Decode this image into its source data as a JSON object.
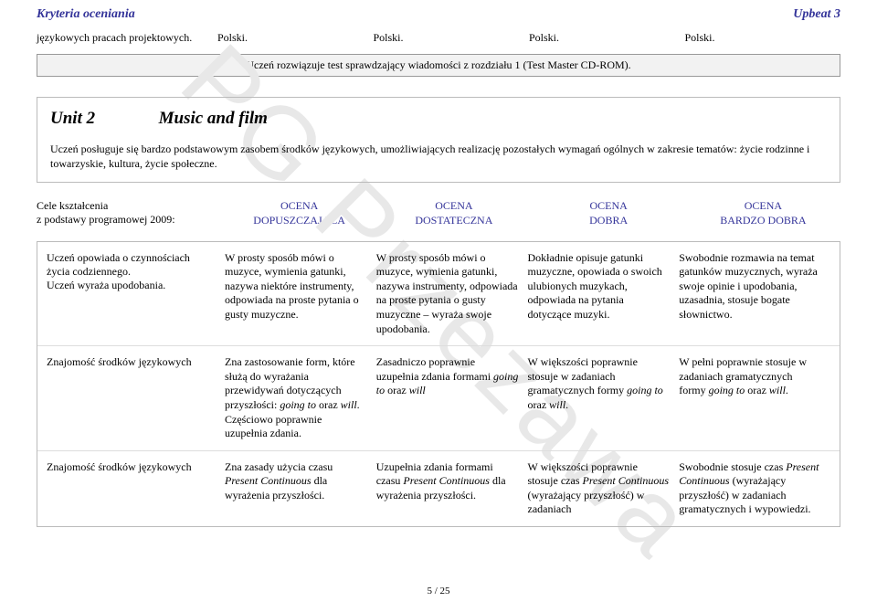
{
  "header": {
    "left": "Kryteria oceniania",
    "right": "Upbeat 3"
  },
  "top_row": {
    "left": "językowych pracach projektowych.",
    "polski": "Polski."
  },
  "test_bar": "Uczeń rozwiązuje test sprawdzający wiadomości z rozdziału 1 (Test Master CD-ROM).",
  "unit": {
    "label": "Unit 2",
    "title": "Music and film",
    "desc": "Uczeń posługuje się bardzo podstawowym zasobem środków językowych, umożliwiających realizację pozostałych wymagań ogólnych w zakresie tematów: życie rodzinne i towarzyskie, kultura, życie społeczne."
  },
  "ocena_header": {
    "left1": "Cele kształcenia",
    "left2": "z podstawy programowej 2009:",
    "c1a": "OCENA",
    "c1b": "DOPUSZCZAJĄCA",
    "c2a": "OCENA",
    "c2b": "DOSTATECZNA",
    "c3a": "OCENA",
    "c3b": "DOBRA",
    "c4a": "OCENA",
    "c4b": "BARDZO DOBRA"
  },
  "rows": [
    {
      "c0": "Uczeń opowiada o czynnościach życia codziennego.\nUczeń wyraża upodobania.",
      "c1": "W prosty sposób mówi o muzyce, wymienia gatunki, nazywa niektóre instrumenty, odpowiada na proste pytania o gusty muzyczne.",
      "c2": "W prosty sposób mówi o muzyce, wymienia gatunki, nazywa instrumenty, odpowiada na proste pytania o gusty muzyczne – wyraża swoje upodobania.",
      "c3": "Dokładnie opisuje gatunki muzyczne, opowiada o swoich ulubionych muzykach, odpowiada na pytania dotyczące muzyki.",
      "c4": "Swobodnie rozmawia na temat gatunków muzycznych, wyraża swoje opinie i upodobania, uzasadnia, stosuje bogate słownictwo."
    },
    {
      "c0": "Znajomość środków językowych",
      "c1_pre": "Zna zastosowanie form, które służą do wyrażania przewidywań dotyczących przyszłości: ",
      "c1_ital": "going to",
      "c1_mid": " oraz ",
      "c1_ital2": "will",
      "c1_post": ". Częściowo poprawnie uzupełnia zdania.",
      "c2_pre": "Zasadniczo poprawnie uzupełnia zdania formami ",
      "c2_ital": "going to",
      "c2_mid": " oraz ",
      "c2_ital2": "will",
      "c3_pre": "W większości poprawnie stosuje w zadaniach gramatycznych formy ",
      "c3_ital": "going to",
      "c3_mid": " oraz ",
      "c3_ital2": "will",
      "c3_post": ".",
      "c4_pre": "W pełni poprawnie stosuje w zadaniach gramatycznych formy ",
      "c4_ital": "going to",
      "c4_mid": " oraz ",
      "c4_ital2": "will",
      "c4_post": "."
    },
    {
      "c0": "Znajomość środków językowych",
      "c1_pre": "Zna zasady użycia czasu ",
      "c1_ital": "Present Continuous",
      "c1_post": " dla wyrażenia przyszłości.",
      "c2_pre": "Uzupełnia zdania formami czasu ",
      "c2_ital": "Present Continuous",
      "c2_post": " dla wyrażenia przyszłości.",
      "c3_pre": "W większości poprawnie stosuje czas ",
      "c3_ital": "Present Continuous",
      "c3_post": " (wyrażający przyszłość) w zadaniach",
      "c4_pre": "Swobodnie stosuje czas ",
      "c4_ital": "Present Continuous",
      "c4_post": " (wyrażający przyszłość) w zadaniach gramatycznych i wypowiedzi."
    }
  ],
  "footer": "5 / 25",
  "watermark": "PG Przezawa",
  "colors": {
    "heading": "#333399",
    "border": "#bbbbbb",
    "watermark": "#e8e8e8"
  }
}
